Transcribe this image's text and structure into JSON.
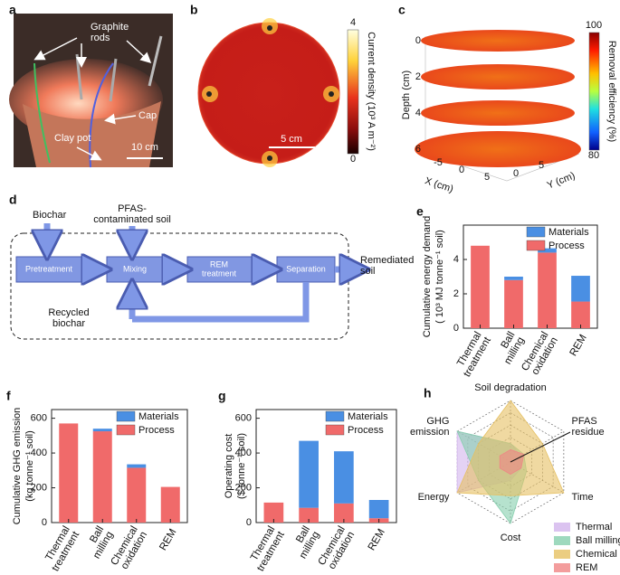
{
  "panels": {
    "a": {
      "label": "a",
      "graphite_rods": [
        "Graphite",
        "rods"
      ],
      "cap": "Cap",
      "clay_pot": "Clay pot",
      "scale_bar": "10 cm"
    },
    "b": {
      "label": "b",
      "colorbar_label": "Current density (10³ A m⁻²)",
      "colorbar_ticks": [
        0,
        4
      ],
      "scale_bar": "5 cm"
    },
    "c": {
      "label": "c",
      "colorbar_label": "Removal efficiency (%)",
      "colorbar_ticks": [
        80,
        100
      ],
      "depth_label": "Depth (cm)",
      "depth_ticks": [
        0,
        2,
        4,
        6
      ],
      "x_label": "X (cm)",
      "x_ticks": [
        -5,
        0,
        5
      ],
      "y_label": "Y (cm)",
      "y_ticks": [
        0,
        5
      ]
    },
    "d": {
      "label": "d",
      "biochar": "Biochar",
      "soil": [
        "PFAS-",
        "contaminated soil"
      ],
      "steps": [
        [
          "Pretreatment"
        ],
        [
          "Mixing"
        ],
        [
          "REM",
          "treatment"
        ],
        [
          "Separation"
        ]
      ],
      "output": [
        "Remediated",
        "soil"
      ],
      "recycle": [
        "Recycled",
        "biochar"
      ]
    }
  },
  "chart_data": [
    {
      "type": "bar",
      "stacked": true,
      "panel_label": "e",
      "ylabel": [
        "Cumulative energy demand",
        "( 10³ MJ tonne⁻¹ soil)"
      ],
      "categories": [
        [
          "Thermal",
          "treatment"
        ],
        [
          "Ball",
          "milling"
        ],
        [
          "Chemical",
          "oxidation"
        ],
        [
          "REM"
        ]
      ],
      "series": [
        {
          "name": "Materials",
          "color": "#4a8fe3",
          "values": [
            0,
            0.2,
            0.25,
            1.5
          ]
        },
        {
          "name": "Process",
          "color": "#f06a6a",
          "values": [
            4.8,
            2.8,
            4.4,
            1.55
          ]
        }
      ],
      "ylim": [
        0,
        6
      ],
      "yticks": [
        0,
        2,
        4
      ]
    },
    {
      "type": "bar",
      "stacked": true,
      "panel_label": "f",
      "ylabel": [
        "Cumulative GHG emission",
        "(kg tonne⁻¹ soil)"
      ],
      "categories": [
        [
          "Thermal",
          "treatment"
        ],
        [
          "Ball",
          "milling"
        ],
        [
          "Chemical",
          "oxidation"
        ],
        [
          "REM"
        ]
      ],
      "series": [
        {
          "name": "Materials",
          "color": "#4a8fe3",
          "values": [
            0,
            15,
            20,
            0
          ]
        },
        {
          "name": "Process",
          "color": "#f06a6a",
          "values": [
            570,
            525,
            315,
            205
          ]
        }
      ],
      "ylim": [
        0,
        650
      ],
      "yticks": [
        0,
        200,
        400,
        600
      ]
    },
    {
      "type": "bar",
      "stacked": true,
      "panel_label": "g",
      "ylabel": [
        "Operating cost",
        "($ tonne⁻¹ soil)"
      ],
      "categories": [
        [
          "Thermal",
          "treatment"
        ],
        [
          "Ball",
          "milling"
        ],
        [
          "Chemical",
          "oxidation"
        ],
        [
          "REM"
        ]
      ],
      "series": [
        {
          "name": "Materials",
          "color": "#4a8fe3",
          "values": [
            0,
            385,
            300,
            105
          ]
        },
        {
          "name": "Process",
          "color": "#f06a6a",
          "values": [
            115,
            85,
            110,
            25
          ]
        }
      ],
      "ylim": [
        0,
        650
      ],
      "yticks": [
        0,
        200,
        400,
        600
      ]
    },
    {
      "type": "radar",
      "panel_label": "h",
      "axes": [
        [
          "Soil degradation"
        ],
        [
          "PFAS",
          "residue"
        ],
        [
          "Time"
        ],
        [
          "Cost"
        ],
        [
          "Energy"
        ],
        [
          "GHG",
          "emission"
        ]
      ],
      "rlim": [
        0,
        1
      ],
      "series": [
        {
          "name": "Thermal",
          "color": "#d2b4ec",
          "values": [
            0.3,
            0.2,
            0.2,
            0.3,
            1,
            1
          ]
        },
        {
          "name": "Ball milling",
          "color": "#86cfae",
          "values": [
            0.3,
            0.25,
            0.3,
            1,
            0.6,
            1
          ]
        },
        {
          "name": "Chemical",
          "color": "#e6c062",
          "values": [
            1,
            0.6,
            1,
            0.55,
            1,
            0.6
          ]
        },
        {
          "name": "REM",
          "color": "#f08585",
          "values": [
            0.2,
            0.25,
            0.2,
            0.2,
            0.2,
            0.2
          ]
        }
      ]
    }
  ]
}
